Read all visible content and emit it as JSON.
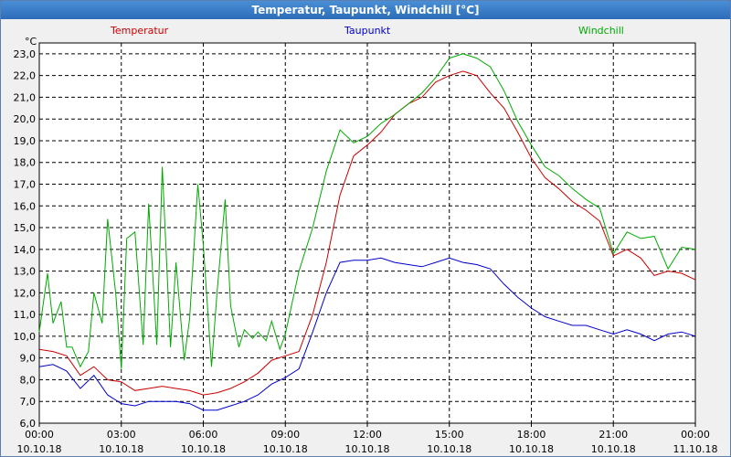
{
  "window": {
    "title": "Temperatur, Taupunkt, Windchill [°C]"
  },
  "colors": {
    "temperatur": "#cc0000",
    "taupunkt": "#0000cc",
    "windchill": "#00aa00",
    "grid": "#000000"
  },
  "chart_data": {
    "type": "line",
    "title": "Temperatur, Taupunkt, Windchill [°C]",
    "ylabel": "°C",
    "ylim": [
      6.0,
      23.5
    ],
    "xlim": [
      0,
      24
    ],
    "y_ticks": [
      "23,0",
      "22,0",
      "21,0",
      "20,0",
      "19,0",
      "18,0",
      "17,0",
      "16,0",
      "15,0",
      "14,0",
      "13,0",
      "12,0",
      "11,0",
      "10,0",
      "9,0",
      "8,0",
      "7,0",
      "6,0"
    ],
    "x_ticks": [
      {
        "time": "00:00",
        "date": "10.10.18"
      },
      {
        "time": "03:00",
        "date": "10.10.18"
      },
      {
        "time": "06:00",
        "date": "10.10.18"
      },
      {
        "time": "09:00",
        "date": "10.10.18"
      },
      {
        "time": "12:00",
        "date": "10.10.18"
      },
      {
        "time": "15:00",
        "date": "10.10.18"
      },
      {
        "time": "18:00",
        "date": "10.10.18"
      },
      {
        "time": "21:00",
        "date": "10.10.18"
      },
      {
        "time": "00:00",
        "date": "11.10.18"
      }
    ],
    "series": [
      {
        "name": "Temperatur",
        "color": "#cc0000",
        "x": [
          0,
          0.5,
          1.0,
          1.5,
          2.0,
          2.5,
          3.0,
          3.5,
          4.0,
          4.5,
          5.0,
          5.5,
          6.0,
          6.5,
          7.0,
          7.5,
          8.0,
          8.5,
          9.0,
          9.5,
          10.0,
          10.5,
          11.0,
          11.5,
          12.0,
          12.5,
          13.0,
          13.5,
          14.0,
          14.5,
          15.0,
          15.5,
          16.0,
          16.5,
          17.0,
          17.5,
          18.0,
          18.5,
          19.0,
          19.5,
          20.0,
          20.5,
          21.0,
          21.5,
          22.0,
          22.5,
          23.0,
          23.5,
          24.0
        ],
        "values": [
          9.4,
          9.3,
          9.1,
          8.2,
          8.6,
          8.0,
          7.9,
          7.5,
          7.6,
          7.7,
          7.6,
          7.5,
          7.3,
          7.4,
          7.6,
          7.9,
          8.3,
          8.9,
          9.1,
          9.3,
          11.0,
          13.4,
          16.5,
          18.3,
          18.8,
          19.4,
          20.2,
          20.7,
          21.0,
          21.7,
          22.0,
          22.2,
          22.0,
          21.2,
          20.5,
          19.4,
          18.2,
          17.3,
          16.8,
          16.2,
          15.8,
          15.3,
          13.7,
          14.0,
          13.6,
          12.8,
          13.0,
          12.9,
          12.6
        ]
      },
      {
        "name": "Taupunkt",
        "color": "#0000cc",
        "x": [
          0,
          0.5,
          1.0,
          1.5,
          2.0,
          2.5,
          3.0,
          3.5,
          4.0,
          4.5,
          5.0,
          5.5,
          6.0,
          6.5,
          7.0,
          7.5,
          8.0,
          8.5,
          9.0,
          9.5,
          10.0,
          10.5,
          11.0,
          11.5,
          12.0,
          12.5,
          13.0,
          13.5,
          14.0,
          14.5,
          15.0,
          15.5,
          16.0,
          16.5,
          17.0,
          17.5,
          18.0,
          18.5,
          19.0,
          19.5,
          20.0,
          20.5,
          21.0,
          21.5,
          22.0,
          22.5,
          23.0,
          23.5,
          24.0
        ],
        "values": [
          8.6,
          8.7,
          8.4,
          7.6,
          8.2,
          7.3,
          6.9,
          6.8,
          7.0,
          7.0,
          7.0,
          6.9,
          6.6,
          6.6,
          6.8,
          7.0,
          7.3,
          7.8,
          8.1,
          8.5,
          10.2,
          12.0,
          13.4,
          13.5,
          13.5,
          13.6,
          13.4,
          13.3,
          13.2,
          13.4,
          13.6,
          13.4,
          13.3,
          13.1,
          12.4,
          11.8,
          11.3,
          10.9,
          10.7,
          10.5,
          10.5,
          10.3,
          10.1,
          10.3,
          10.1,
          9.8,
          10.1,
          10.2,
          10.0
        ]
      },
      {
        "name": "Windchill",
        "color": "#00aa00",
        "x": [
          0,
          0.3,
          0.5,
          0.8,
          1.0,
          1.2,
          1.5,
          1.8,
          2.0,
          2.3,
          2.5,
          2.8,
          3.0,
          3.2,
          3.5,
          3.8,
          4.0,
          4.3,
          4.5,
          4.8,
          5.0,
          5.3,
          5.5,
          5.8,
          6.0,
          6.3,
          6.5,
          6.8,
          7.0,
          7.3,
          7.5,
          7.8,
          8.0,
          8.3,
          8.5,
          8.8,
          9.0,
          9.5,
          10.0,
          10.5,
          11.0,
          11.5,
          12.0,
          12.5,
          13.0,
          13.5,
          14.0,
          14.5,
          15.0,
          15.5,
          16.0,
          16.5,
          17.0,
          17.5,
          18.0,
          18.5,
          19.0,
          19.5,
          20.0,
          20.5,
          21.0,
          21.5,
          22.0,
          22.5,
          23.0,
          23.5,
          24.0
        ],
        "values": [
          10.2,
          12.9,
          10.6,
          11.6,
          9.5,
          9.5,
          8.6,
          9.3,
          12.0,
          10.6,
          15.4,
          11.9,
          8.5,
          14.5,
          14.8,
          9.6,
          16.1,
          9.6,
          17.8,
          9.5,
          13.4,
          8.9,
          10.8,
          17.0,
          14.2,
          8.6,
          12.0,
          16.3,
          11.4,
          9.5,
          10.3,
          9.9,
          10.2,
          9.8,
          10.7,
          9.4,
          10.1,
          13.0,
          15.0,
          17.6,
          19.5,
          18.9,
          19.2,
          19.8,
          20.2,
          20.7,
          21.2,
          21.9,
          22.8,
          23.0,
          22.8,
          22.4,
          21.3,
          19.9,
          18.8,
          17.8,
          17.4,
          16.8,
          16.3,
          15.9,
          13.8,
          14.8,
          14.5,
          14.6,
          13.1,
          14.1,
          14.0
        ]
      }
    ]
  }
}
